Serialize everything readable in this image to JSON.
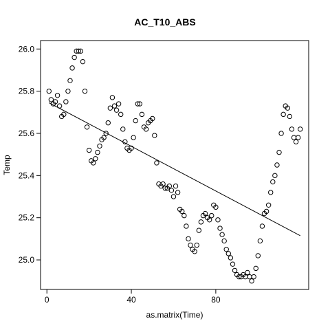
{
  "chart_data": {
    "type": "scatter",
    "title": "AC_T10_ABS",
    "xlabel": "as.matrix(Time)",
    "ylabel": "Temp",
    "xlim": [
      -3,
      124
    ],
    "ylim": [
      24.86,
      26.04
    ],
    "x_ticks": [
      0,
      40,
      80
    ],
    "x_tick_labels": [
      "0",
      "40",
      "80"
    ],
    "y_ticks": [
      25.0,
      25.2,
      25.4,
      25.6,
      25.8,
      26.0
    ],
    "y_tick_labels": [
      "25.0",
      "25.2",
      "25.4",
      "25.6",
      "25.8",
      "26.0"
    ],
    "grid": false,
    "legend": "none",
    "point_style": "open-circle",
    "colors": {
      "points": "#000000",
      "line": "#000000",
      "background": "#ffffff"
    },
    "series": [
      {
        "x": [
          1,
          2,
          3,
          4,
          5,
          6,
          7,
          8,
          9,
          10,
          11,
          12,
          13,
          14,
          15,
          16,
          17,
          18,
          19,
          20,
          21,
          22,
          23,
          24,
          25,
          26,
          27,
          28,
          29,
          30,
          31,
          32,
          33,
          34,
          35,
          36,
          37,
          38,
          39,
          40,
          41,
          42,
          43,
          44,
          45,
          46,
          47,
          48,
          49,
          50,
          51,
          52,
          53,
          54,
          55,
          56,
          57,
          58,
          59,
          60,
          61,
          62,
          63,
          64,
          65,
          66,
          67,
          68,
          69,
          70,
          71,
          72,
          73,
          74,
          75,
          76,
          77,
          78,
          79,
          80,
          81,
          82,
          83,
          84,
          85,
          86,
          87,
          88,
          89,
          90,
          91,
          92,
          93,
          94,
          95,
          96,
          97,
          98,
          99,
          100,
          101,
          102,
          103,
          104,
          105,
          106,
          107,
          108,
          109,
          110,
          111,
          112,
          113,
          114,
          115,
          116,
          117,
          118,
          119,
          120
        ],
        "y": [
          25.8,
          25.76,
          25.74,
          25.75,
          25.78,
          25.73,
          25.68,
          25.69,
          25.75,
          25.8,
          25.85,
          25.91,
          25.96,
          25.99,
          25.99,
          25.99,
          25.94,
          25.8,
          25.63,
          25.52,
          25.47,
          25.46,
          25.48,
          25.51,
          25.54,
          25.57,
          25.58,
          25.6,
          25.65,
          25.72,
          25.77,
          25.73,
          25.71,
          25.74,
          25.69,
          25.62,
          25.56,
          25.53,
          25.52,
          25.53,
          25.58,
          25.66,
          25.74,
          25.74,
          25.69,
          25.63,
          25.62,
          25.65,
          25.66,
          25.67,
          25.59,
          25.46,
          25.36,
          25.35,
          25.36,
          25.34,
          25.34,
          25.35,
          25.33,
          25.3,
          25.35,
          25.32,
          25.24,
          25.23,
          25.21,
          25.16,
          25.1,
          25.07,
          25.05,
          25.04,
          25.07,
          25.14,
          25.18,
          25.21,
          25.22,
          25.2,
          25.19,
          25.21,
          25.26,
          25.25,
          25.19,
          25.15,
          25.12,
          25.09,
          25.05,
          25.03,
          25.01,
          24.98,
          24.95,
          24.93,
          24.92,
          24.92,
          24.93,
          24.92,
          24.94,
          24.92,
          24.9,
          24.92,
          24.96,
          25.02,
          25.09,
          25.16,
          25.22,
          25.23,
          25.26,
          25.32,
          25.37,
          25.4,
          25.45,
          25.51,
          25.6,
          25.69,
          25.73,
          25.72,
          25.68,
          25.62,
          25.58,
          25.56,
          25.58,
          25.62
        ]
      }
    ],
    "regression_line": {
      "x": [
        1,
        120
      ],
      "y": [
        25.745,
        25.115
      ]
    }
  }
}
